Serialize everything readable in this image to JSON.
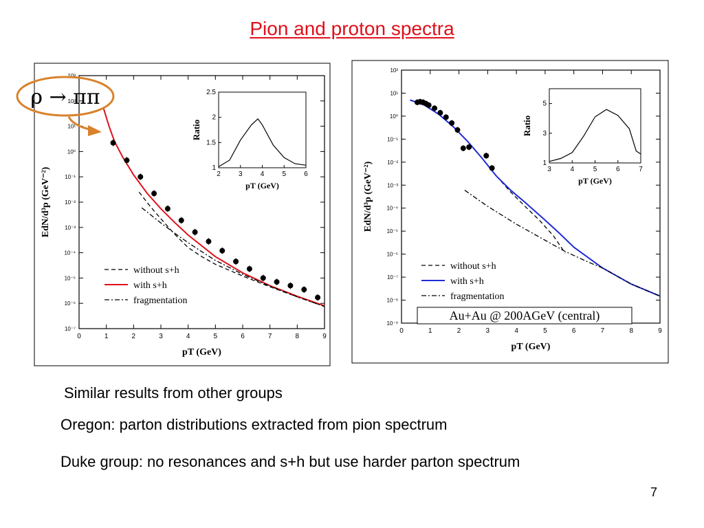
{
  "slide": {
    "title": "Pion and proton spectra",
    "page_number": "7",
    "bullets": [
      "Similar results from other groups",
      "Oregon: parton distributions extracted from pion spectrum",
      "Duke group: no resonances and s+h but use harder parton spectrum"
    ],
    "annotation": {
      "text": "ρ → ππ",
      "color": "#d9822b"
    }
  },
  "chart_data": [
    {
      "type": "line",
      "yscale": "log",
      "xlabel": "pT (GeV)",
      "ylabel": "EdN/d³p (GeV⁻²)",
      "xlim": [
        0,
        9
      ],
      "ylim": [
        1e-07,
        1000
      ],
      "x_ticks": [
        "0",
        "1",
        "2",
        "3",
        "4",
        "5",
        "6",
        "7",
        "8",
        "9"
      ],
      "y_ticks": [
        "10⁻⁷",
        "10⁻⁶",
        "10⁻⁵",
        "10⁻⁴",
        "10⁻³",
        "10⁻²",
        "10⁻¹",
        "10⁰",
        "10¹",
        "10²",
        "10³"
      ],
      "legend": [
        "without s+h",
        "with s+h",
        "fragmentation"
      ],
      "colors": {
        "without": "#000000",
        "with": "#e0101a",
        "frag": "#000000",
        "points": "#000000"
      },
      "series": [
        {
          "name": "without s+h",
          "style": "dashed",
          "x": [
            2.2,
            2.6,
            3.0,
            3.5,
            4.0,
            4.5,
            5.0,
            6.0,
            7.0,
            8.0,
            9.0
          ],
          "y": [
            0.025,
            0.007,
            0.0022,
            0.00055,
            0.00016,
            7e-05,
            3.5e-05,
            1.2e-05,
            4.5e-06,
            1.8e-06,
            7.5e-07
          ]
        },
        {
          "name": "with s+h",
          "style": "solid",
          "x": [
            0.9,
            1.1,
            1.3,
            1.6,
            2.0,
            2.5,
            3.0,
            3.5,
            4.0,
            5.0,
            6.0,
            7.0,
            8.0,
            9.0
          ],
          "y": [
            50,
            10,
            2.5,
            0.6,
            0.12,
            0.022,
            0.0055,
            0.0016,
            0.0005,
            7e-05,
            1.6e-05,
            5e-06,
            1.9e-06,
            8e-07
          ]
        },
        {
          "name": "fragmentation",
          "style": "dashdot",
          "x": [
            2.3,
            3.0,
            3.5,
            4.0,
            4.5,
            5.0,
            6.0,
            7.0,
            8.0,
            9.0
          ],
          "y": [
            0.006,
            0.0015,
            0.0006,
            0.00025,
            0.00011,
            5e-05,
            1.4e-05,
            4.8e-06,
            1.8e-06,
            7.5e-07
          ]
        },
        {
          "name": "data",
          "style": "points",
          "x": [
            1.25,
            1.75,
            2.25,
            2.75,
            3.25,
            3.75,
            4.25,
            4.75,
            5.25,
            5.75,
            6.25,
            6.75,
            7.25,
            7.75,
            8.25,
            8.75
          ],
          "y": [
            2.2,
            0.45,
            0.1,
            0.022,
            0.0055,
            0.0019,
            0.00065,
            0.00028,
            0.00012,
            4.5e-05,
            2.3e-05,
            1e-05,
            7e-06,
            5e-06,
            3.5e-06,
            1.7e-06
          ]
        }
      ],
      "inset": {
        "xlabel": "pT (GeV)",
        "ylabel": "Ratio",
        "xlim": [
          2,
          6
        ],
        "ylim": [
          1,
          2.5
        ],
        "x_ticks": [
          "2",
          "3",
          "4",
          "5",
          "6"
        ],
        "y_ticks": [
          "1",
          "1.5",
          "2",
          "2.5"
        ],
        "series": [
          {
            "x": [
              2,
              2.5,
              3,
              3.5,
              3.8,
              4,
              4.5,
              5,
              5.5,
              6
            ],
            "y": [
              1.02,
              1.15,
              1.55,
              1.85,
              1.97,
              1.85,
              1.45,
              1.2,
              1.08,
              1.05
            ]
          }
        ]
      }
    },
    {
      "type": "line",
      "yscale": "log",
      "xlabel": "pT (GeV)",
      "ylabel": "EdN/d³p (GeV⁻²)",
      "xlim": [
        0,
        9
      ],
      "ylim": [
        1e-09,
        100
      ],
      "x_ticks": [
        "0",
        "1",
        "2",
        "3",
        "4",
        "5",
        "6",
        "7",
        "8",
        "9"
      ],
      "y_ticks": [
        "10⁻⁹",
        "10⁻⁸",
        "10⁻⁷",
        "10⁻⁶",
        "10⁻⁵",
        "10⁻⁴",
        "10⁻³",
        "10⁻²",
        "10⁻¹",
        "10⁰",
        "10¹",
        "10²"
      ],
      "legend": [
        "without s+h",
        "with s+h",
        "fragmentation"
      ],
      "annotation": "Au+Au @ 200AGeV (central)",
      "colors": {
        "without": "#000000",
        "with": "#1f2bd6",
        "frag": "#000000",
        "points": "#000000"
      },
      "series": [
        {
          "name": "without s+h",
          "style": "dashed",
          "x": [
            0.3,
            0.8,
            1.3,
            1.8,
            2.3,
            2.8,
            3.3,
            3.8,
            4.3,
            4.8,
            5.3,
            5.7
          ],
          "y": [
            5,
            3,
            1.2,
            0.35,
            0.08,
            0.015,
            0.0025,
            0.0005,
            0.00012,
            3e-05,
            6e-06,
            1.1e-06
          ]
        },
        {
          "name": "with s+h",
          "style": "solid",
          "x": [
            0.3,
            0.8,
            1.3,
            1.8,
            2.3,
            2.8,
            3.3,
            3.8,
            4.3,
            5.0,
            5.5,
            6.0,
            7.0,
            8.0,
            9.0
          ],
          "y": [
            5,
            3,
            1.2,
            0.35,
            0.08,
            0.015,
            0.0025,
            0.0006,
            0.00018,
            3e-05,
            8e-06,
            2e-06,
            2.5e-07,
            5e-08,
            1.5e-08
          ]
        },
        {
          "name": "fragmentation",
          "style": "dashdot",
          "x": [
            2.2,
            3.0,
            4.0,
            5.0,
            5.7,
            6.5,
            7.0,
            8.0,
            9.0
          ],
          "y": [
            0.0006,
            0.00012,
            2e-05,
            4e-06,
            1.3e-06,
            4.5e-07,
            2.5e-07,
            5e-08,
            1.5e-08
          ]
        },
        {
          "name": "data",
          "style": "points",
          "x": [
            0.55,
            0.65,
            0.75,
            0.85,
            0.95,
            1.15,
            1.35,
            1.55,
            1.75,
            1.95,
            2.15,
            2.35,
            2.95,
            3.15
          ],
          "y": [
            4,
            4.2,
            4,
            3.5,
            3,
            2.2,
            1.4,
            0.9,
            0.5,
            0.25,
            0.04,
            0.045,
            0.019,
            0.0055
          ]
        }
      ],
      "inset": {
        "xlabel": "pT (GeV)",
        "ylabel": "Ratio",
        "xlim": [
          3,
          7
        ],
        "ylim": [
          1,
          6
        ],
        "x_ticks": [
          "3",
          "4",
          "5",
          "6",
          "7"
        ],
        "y_ticks": [
          "1",
          "3",
          "5"
        ],
        "series": [
          {
            "x": [
              3,
              3.5,
              4,
              4.5,
              5,
              5.5,
              6,
              6.5,
              6.8,
              7
            ],
            "y": [
              1.1,
              1.3,
              1.7,
              2.8,
              4.1,
              4.6,
              4.2,
              3.3,
              1.8,
              1.6
            ]
          }
        ]
      }
    }
  ]
}
